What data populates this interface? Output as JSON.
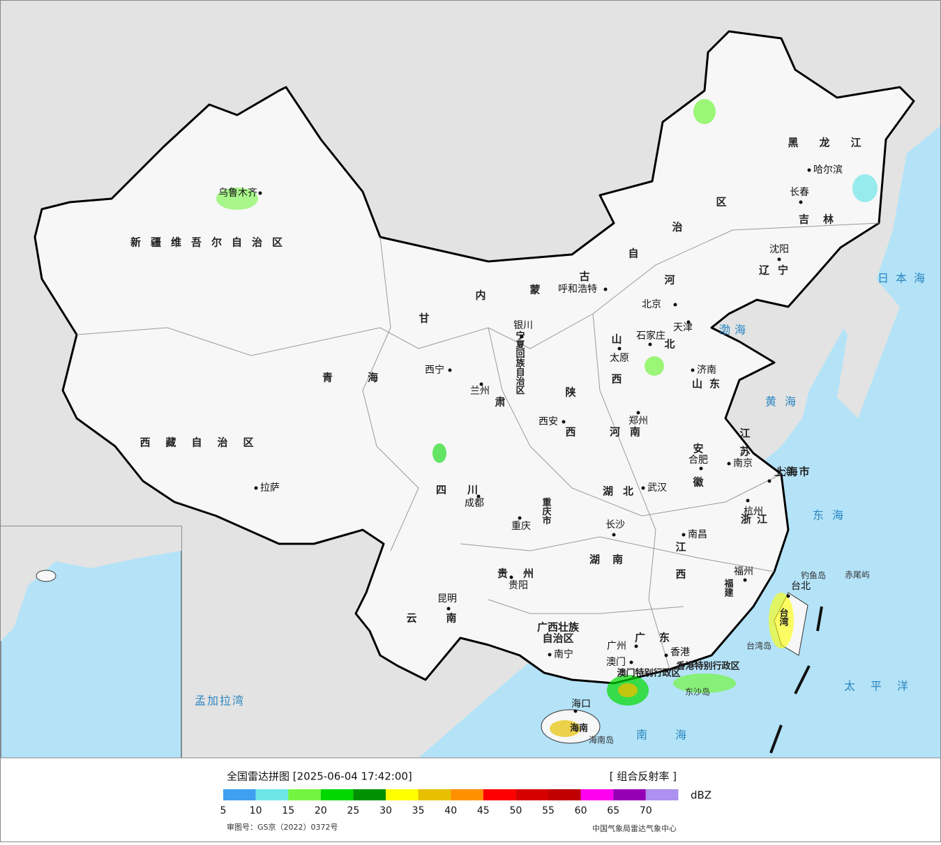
{
  "map": {
    "regions": [
      "新疆维吾尔自治区",
      "西藏自治区",
      "青海",
      "甘",
      "肃",
      "内",
      "蒙",
      "古",
      "自",
      "治",
      "区",
      "宁夏回族自治区",
      "黑龙江",
      "吉林",
      "辽宁",
      "河",
      "北",
      "山",
      "西",
      "陕",
      "西",
      "山东",
      "河南",
      "江",
      "苏",
      "安",
      "徽",
      "湖北",
      "四川",
      "重庆市",
      "浙江",
      "江",
      "西",
      "湖南",
      "贵州",
      "福建",
      "云",
      "南",
      "广西壮族",
      "自治区",
      "广东",
      "台湾",
      "上海市",
      "海南",
      "澳门特别行政区",
      "香港特别行政区"
    ],
    "cities": [
      "乌鲁木齐",
      "拉萨",
      "西宁",
      "兰州",
      "银川",
      "呼和浩特",
      "北京",
      "天津",
      "石家庄",
      "太原",
      "济南",
      "郑州",
      "西安",
      "成都",
      "重庆",
      "武汉",
      "合肥",
      "南京",
      "上海",
      "杭州",
      "长沙",
      "南昌",
      "贵阳",
      "昆明",
      "福州",
      "南宁",
      "广州",
      "香港",
      "澳门",
      "海口",
      "台北",
      "长春",
      "沈阳",
      "哈尔滨"
    ],
    "seas": [
      "日本海",
      "渤海",
      "黄海",
      "东海",
      "太平洋",
      "南海",
      "孟加拉湾"
    ],
    "islands": [
      "钓鱼岛",
      "赤尾屿",
      "海南岛",
      "台湾岛",
      "东沙岛"
    ]
  },
  "legend": {
    "title": "全国雷达拼图 [2025-06-04 17:42:00]",
    "product": "[ 组合反射率 ]",
    "unit": "dBZ",
    "ticks": [
      5,
      10,
      15,
      20,
      25,
      30,
      35,
      40,
      45,
      50,
      55,
      60,
      65,
      70
    ],
    "colors": [
      "#3f9ff0",
      "#6ee6e8",
      "#74f542",
      "#00d800",
      "#009000",
      "#ffff00",
      "#e7c000",
      "#ff9000",
      "#ff0000",
      "#d60000",
      "#c00000",
      "#ff00f0",
      "#9600b4",
      "#ad90f0"
    ]
  },
  "footer": {
    "approval": "审图号：GS京（2022）0372号",
    "source": "中国气象局雷达气象中心"
  }
}
